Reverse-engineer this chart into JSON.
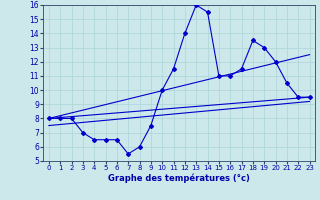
{
  "title": "Graphe des températures (°c)",
  "bg_color": "#cce8ea",
  "grid_color": "#b0d8dc",
  "line_color": "#0000cc",
  "xlim": [
    -0.5,
    23.5
  ],
  "ylim": [
    5,
    16
  ],
  "xticks": [
    0,
    1,
    2,
    3,
    4,
    5,
    6,
    7,
    8,
    9,
    10,
    11,
    12,
    13,
    14,
    15,
    16,
    17,
    18,
    19,
    20,
    21,
    22,
    23
  ],
  "yticks": [
    5,
    6,
    7,
    8,
    9,
    10,
    11,
    12,
    13,
    14,
    15,
    16
  ],
  "series1_x": [
    0,
    1,
    2,
    3,
    4,
    5,
    6,
    7,
    8,
    9,
    10,
    11,
    12,
    13,
    14,
    15,
    16,
    17,
    18,
    19,
    20,
    21,
    22,
    23
  ],
  "series1_y": [
    8.0,
    8.0,
    8.0,
    7.0,
    6.5,
    6.5,
    6.5,
    5.5,
    6.0,
    7.5,
    10.0,
    11.5,
    14.0,
    16.0,
    15.5,
    11.0,
    11.0,
    11.5,
    13.5,
    13.0,
    12.0,
    10.5,
    9.5,
    9.5
  ],
  "series2_x": [
    0,
    23
  ],
  "series2_y": [
    8.0,
    9.5
  ],
  "series3_x": [
    0,
    23
  ],
  "series3_y": [
    8.0,
    12.5
  ],
  "series4_x": [
    0,
    23
  ],
  "series4_y": [
    7.5,
    9.2
  ]
}
